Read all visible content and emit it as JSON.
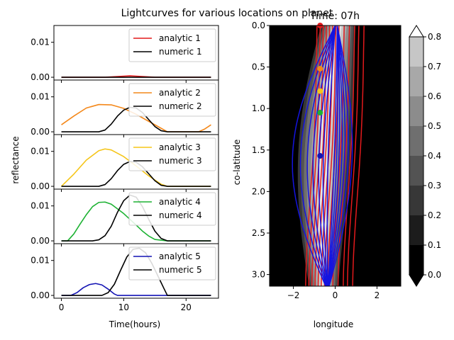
{
  "figure": {
    "suptitle": "Lightcurves for various locations on planet",
    "map_title": "Time: 07h"
  },
  "chart_data": [
    {
      "type": "line",
      "panel": "lightcurves",
      "xlabel": "Time(hours)",
      "ylabel": "reflectance",
      "xlim": [
        -1.2,
        25.2
      ],
      "x_ticks": [
        0,
        10,
        20
      ],
      "y_ticks": [
        0.0,
        0.01
      ],
      "y_tick_labels": [
        "0.00",
        "0.01"
      ],
      "legend_position": "top-right",
      "subplots": [
        {
          "ylim": [
            -0.0008,
            0.0148
          ],
          "series": [
            {
              "name": "analytic 1",
              "color": "#e31a1c",
              "x": [
                0,
                7,
                9,
                11,
                13,
                15,
                24
              ],
              "y": [
                0,
                0,
                0.0002,
                0.0004,
                0.0002,
                0,
                0
              ]
            },
            {
              "name": "numeric 1",
              "color": "#000000",
              "x": [
                0,
                24
              ],
              "y": [
                0,
                0
              ]
            }
          ]
        },
        {
          "ylim": [
            -0.0008,
            0.0148
          ],
          "series": [
            {
              "name": "analytic 2",
              "color": "#f4881a",
              "x": [
                0,
                2,
                4,
                6,
                8,
                10,
                12,
                14,
                16,
                17,
                22,
                23,
                24
              ],
              "y": [
                0.002,
                0.0045,
                0.0068,
                0.0078,
                0.0077,
                0.0067,
                0.005,
                0.003,
                0.001,
                0,
                0,
                0.0008,
                0.002
              ]
            },
            {
              "name": "numeric 2",
              "color": "#000000",
              "x": [
                0,
                6,
                7,
                8,
                9,
                10,
                11,
                12,
                13,
                14,
                15,
                16,
                17,
                24
              ],
              "y": [
                0,
                0,
                0.0005,
                0.0022,
                0.0045,
                0.0062,
                0.007,
                0.0068,
                0.0055,
                0.0035,
                0.0015,
                0.0003,
                0,
                0
              ]
            }
          ]
        },
        {
          "ylim": [
            -0.0008,
            0.0148
          ],
          "series": [
            {
              "name": "analytic 3",
              "color": "#f5c518",
              "x": [
                0,
                2,
                4,
                6,
                7,
                8,
                10,
                12,
                14,
                16,
                17,
                24
              ],
              "y": [
                0,
                0.0035,
                0.0075,
                0.0102,
                0.0107,
                0.0104,
                0.0085,
                0.0058,
                0.003,
                0.0006,
                0,
                0
              ]
            },
            {
              "name": "numeric 3",
              "color": "#000000",
              "x": [
                0,
                6,
                7,
                8,
                9,
                10,
                11,
                12,
                13,
                14,
                15,
                16,
                17,
                24
              ],
              "y": [
                0,
                0,
                0.0005,
                0.0022,
                0.0045,
                0.0063,
                0.0071,
                0.0069,
                0.0056,
                0.0036,
                0.0016,
                0.0003,
                0,
                0
              ]
            }
          ]
        },
        {
          "ylim": [
            -0.0008,
            0.0148
          ],
          "series": [
            {
              "name": "analytic 4",
              "color": "#1db233",
              "x": [
                0,
                1,
                2,
                3,
                4,
                5,
                6,
                7,
                8,
                10,
                12,
                13,
                14,
                15,
                17,
                24
              ],
              "y": [
                0,
                0,
                0.002,
                0.0048,
                0.0075,
                0.0098,
                0.011,
                0.0111,
                0.0105,
                0.0078,
                0.0045,
                0.0028,
                0.0014,
                0.0004,
                0,
                0
              ]
            },
            {
              "name": "numeric 4",
              "color": "#000000",
              "x": [
                0,
                5,
                6,
                7,
                8,
                9,
                10,
                11,
                12,
                13,
                14,
                15,
                16,
                17,
                24
              ],
              "y": [
                0,
                0,
                0.0003,
                0.0015,
                0.0042,
                0.0082,
                0.0115,
                0.0131,
                0.0125,
                0.0098,
                0.0062,
                0.0028,
                0.0007,
                0,
                0
              ]
            }
          ]
        },
        {
          "ylim": [
            -0.0008,
            0.0148
          ],
          "series": [
            {
              "name": "analytic 5",
              "color": "#1414b4",
              "x": [
                0,
                1.5,
                2.5,
                3.5,
                4.5,
                5.5,
                6.5,
                7.5,
                8.5,
                9,
                24
              ],
              "y": [
                0,
                0,
                0.0008,
                0.0022,
                0.0031,
                0.0034,
                0.003,
                0.0018,
                0.0004,
                0,
                0
              ]
            },
            {
              "name": "numeric 5",
              "color": "#000000",
              "x": [
                0,
                6.5,
                7.5,
                8.5,
                9.5,
                10.5,
                11.5,
                12.5,
                13.5,
                14.5,
                15.5,
                16.5,
                17,
                24
              ],
              "y": [
                0,
                0,
                0.0008,
                0.0032,
                0.0072,
                0.011,
                0.0132,
                0.0135,
                0.0122,
                0.0092,
                0.0055,
                0.0018,
                0,
                0
              ]
            }
          ]
        }
      ]
    },
    {
      "type": "heatmap",
      "panel": "map",
      "xlabel": "longitude",
      "ylabel": "co-latitude",
      "xlim": [
        -3.14,
        3.14
      ],
      "ylim": [
        3.14,
        0
      ],
      "x_ticks": [
        -2,
        0,
        2
      ],
      "y_ticks": [
        0.0,
        0.5,
        1.0,
        1.5,
        2.0,
        2.5,
        3.0
      ],
      "y_tick_labels": [
        "0.0",
        "0.5",
        "1.0",
        "1.5",
        "2.0",
        "2.5",
        "3.0"
      ],
      "grid": false,
      "colorbar": {
        "levels": [
          0.0,
          0.1,
          0.2,
          0.3,
          0.4,
          0.5,
          0.6,
          0.7,
          0.8
        ],
        "tick_labels": [
          "0.0",
          "0.1",
          "0.2",
          "0.3",
          "0.4",
          "0.5",
          "0.6",
          "0.7",
          "0.8"
        ],
        "colors": [
          "#000000",
          "#1c1c1c",
          "#373737",
          "#535353",
          "#6f6f6f",
          "#8c8c8c",
          "#a8a8a8",
          "#c6c6c6",
          "#e4e4e4"
        ],
        "extend": "both"
      },
      "red_contour_color": "#e31a1c",
      "blue_contour_color": "#1414e0",
      "markers": [
        {
          "lon": -0.72,
          "colat": 0.0,
          "color": "#e31a1c"
        },
        {
          "lon": -0.72,
          "colat": 0.52,
          "color": "#f4881a"
        },
        {
          "lon": -0.72,
          "colat": 0.79,
          "color": "#f5c518"
        },
        {
          "lon": -0.72,
          "colat": 1.05,
          "color": "#1db233"
        },
        {
          "lon": -0.72,
          "colat": 1.57,
          "color": "#1414b4"
        }
      ]
    }
  ]
}
